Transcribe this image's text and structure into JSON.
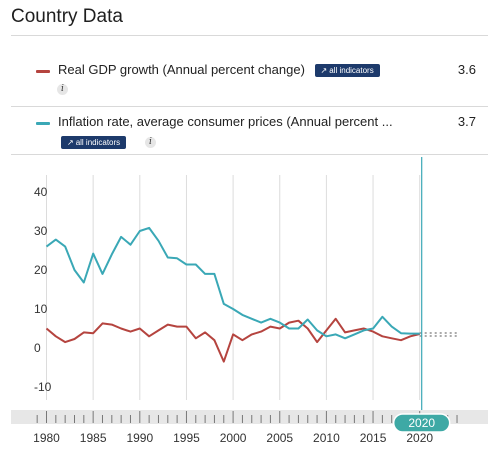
{
  "page_title": "Country Data",
  "legend": [
    {
      "label": "Real GDP growth (Annual percent change)",
      "value": "3.6",
      "badge": "all indicators",
      "info_icon": "info-icon"
    },
    {
      "label": "Inflation rate, average consumer prices (Annual percent ...",
      "value": "3.7",
      "badge": "all indicators",
      "info_icon": "info-icon"
    }
  ],
  "slider": {
    "label": "2020"
  },
  "chart_data": {
    "type": "line",
    "x": [
      1980,
      1981,
      1982,
      1983,
      1984,
      1985,
      1986,
      1987,
      1988,
      1989,
      1990,
      1991,
      1992,
      1993,
      1994,
      1995,
      1996,
      1997,
      1998,
      1999,
      2000,
      2001,
      2002,
      2003,
      2004,
      2005,
      2006,
      2007,
      2008,
      2009,
      2010,
      2011,
      2012,
      2013,
      2014,
      2015,
      2016,
      2017,
      2018,
      2019,
      2020
    ],
    "series": [
      {
        "name": "Real GDP growth (Annual percent change)",
        "color": "#b5443f",
        "values": [
          5.0,
          3.0,
          1.5,
          2.3,
          4.0,
          3.8,
          6.3,
          6.0,
          5.0,
          4.2,
          5.0,
          3.0,
          4.5,
          6.0,
          5.5,
          5.5,
          2.5,
          4.0,
          2.0,
          -3.5,
          3.5,
          2.0,
          3.5,
          4.2,
          5.5,
          5.0,
          6.5,
          7.0,
          5.0,
          1.5,
          4.5,
          7.5,
          4.0,
          4.5,
          5.0,
          4.2,
          3.0,
          2.5,
          2.0,
          3.0,
          3.6
        ]
      },
      {
        "name": "Inflation rate, average consumer prices (Annual percent ...",
        "color": "#3aa8b6",
        "values": [
          26.0,
          27.8,
          26.0,
          20.0,
          16.8,
          24.2,
          19.0,
          24.0,
          28.5,
          26.5,
          30.0,
          30.8,
          27.5,
          23.2,
          23.0,
          21.4,
          21.4,
          19.0,
          19.0,
          11.3,
          10.0,
          8.5,
          7.5,
          6.5,
          7.5,
          6.5,
          5.0,
          5.0,
          7.3,
          4.5,
          3.0,
          3.5,
          2.5,
          3.5,
          4.5,
          5.0,
          8.0,
          5.5,
          3.8,
          3.7,
          3.7
        ]
      }
    ],
    "projection_end_year": 2024,
    "y_ticks": [
      40,
      30,
      20,
      10,
      0,
      -10
    ],
    "x_ticks": [
      1980,
      1985,
      1990,
      1995,
      2000,
      2005,
      2010,
      2015,
      2020
    ],
    "ylim": [
      -10,
      40
    ],
    "xlim": [
      1979,
      2024
    ],
    "grid": "vertical",
    "marker_year": 2020
  }
}
